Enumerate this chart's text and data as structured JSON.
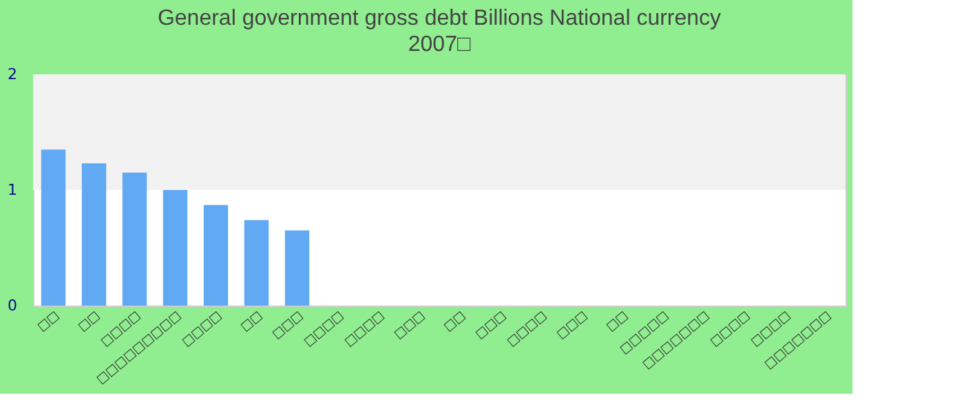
{
  "chart_data": {
    "type": "bar",
    "title": "General government gross debt Billions National currency",
    "subtitle": "2007□",
    "categories": [
      "□□",
      "□□",
      "□□□□",
      "□□□□□□□□□",
      "□□□□",
      "□□",
      "□□□",
      "□□□□",
      "□□□□",
      "□□□",
      "□□",
      "□□□",
      "□□□□",
      "□□□",
      "□□",
      "□□□□□",
      "□□□□□□□",
      "□□□□",
      "□□□□",
      "□□□□□□□"
    ],
    "values": [
      1.35,
      1.23,
      1.15,
      1.0,
      0.87,
      0.74,
      0.65,
      null,
      null,
      null,
      null,
      null,
      null,
      null,
      null,
      null,
      null,
      null,
      null,
      null
    ],
    "color": "#62a9f4",
    "ylim": [
      0,
      2
    ],
    "yticks": [
      0,
      1,
      2
    ],
    "grid": false,
    "bands": [
      {
        "axis": "y",
        "from": 1,
        "to": 2,
        "color": "#f2f2f2"
      }
    ]
  }
}
